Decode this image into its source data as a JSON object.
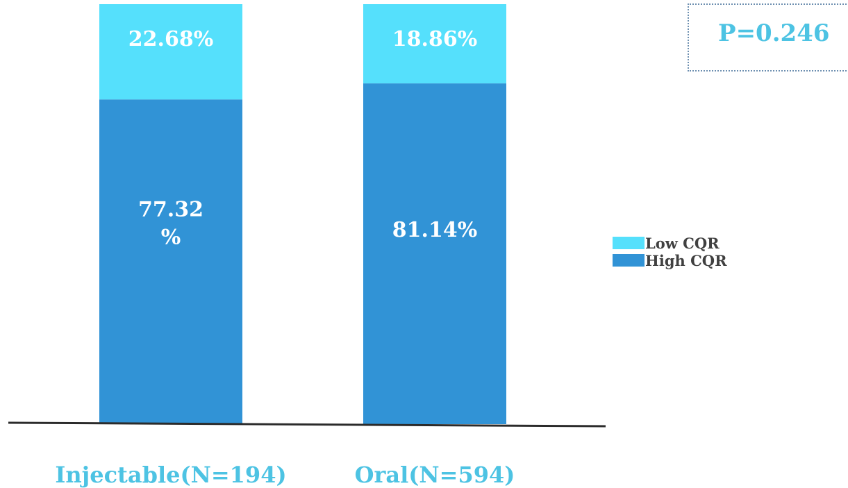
{
  "chart_data": {
    "type": "bar",
    "stacked": true,
    "percent_stacked": true,
    "categories": [
      "Injectable(N=194)",
      "Oral(N=594)"
    ],
    "series": [
      {
        "name": "High CQR",
        "values": [
          77.32,
          81.14
        ],
        "labels": [
          "77.32\n%",
          "81.14%"
        ]
      },
      {
        "name": "Low CQR",
        "values": [
          22.68,
          18.86
        ],
        "labels": [
          "22.68%",
          "18.86%"
        ]
      }
    ],
    "ylim": [
      0,
      100
    ],
    "grid": false,
    "legend_position": "right",
    "annotation": "P=0.246"
  },
  "colors": {
    "High CQR": "#3193d6",
    "Low CQR": "#55e0fc",
    "category_label": "#4dc3e3",
    "axis": "#2b2b2b",
    "annotation_border": "#6d8fb0"
  }
}
